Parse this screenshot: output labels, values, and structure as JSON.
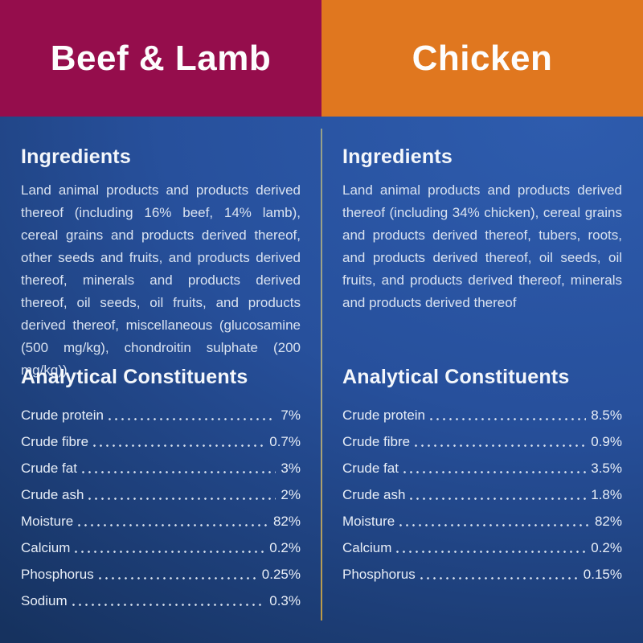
{
  "columns": [
    {
      "id": "beef-lamb",
      "header": {
        "label": "Beef & Lamb",
        "color": "#950D4C"
      },
      "ingredients": {
        "title": "Ingredients",
        "text": "Land animal products and products derived thereof (including 16% beef, 14% lamb), cereal grains and products derived thereof, other seeds and fruits, and products derived thereof, minerals and products derived thereof, oil seeds, oil fruits, and products derived thereof, miscellaneous (glucosamine (500 mg/kg), chondroitin sulphate (200 mg/kg))"
      },
      "analytical": {
        "title": "Analytical Constituents",
        "rows": [
          {
            "label": "Crude protein",
            "value": "7%"
          },
          {
            "label": "Crude fibre",
            "value": "0.7%"
          },
          {
            "label": "Crude fat",
            "value": "3%"
          },
          {
            "label": "Crude ash",
            "value": "2%"
          },
          {
            "label": "Moisture",
            "value": "82%"
          },
          {
            "label": "Calcium",
            "value": "0.2%"
          },
          {
            "label": "Phosphorus",
            "value": "0.25%"
          },
          {
            "label": "Sodium",
            "value": "0.3%"
          }
        ]
      }
    },
    {
      "id": "chicken",
      "header": {
        "label": "Chicken",
        "color": "#E0771F"
      },
      "ingredients": {
        "title": "Ingredients",
        "text": "Land animal products and products derived thereof (including 34% chicken), cereal grains and products derived thereof, tubers, roots, and products derived thereof, oil seeds, oil fruits, and products derived thereof, minerals and products derived thereof"
      },
      "analytical": {
        "title": "Analytical Constituents",
        "rows": [
          {
            "label": "Crude protein",
            "value": "8.5%"
          },
          {
            "label": "Crude fibre",
            "value": "0.9%"
          },
          {
            "label": "Crude fat",
            "value": "3.5%"
          },
          {
            "label": "Crude ash",
            "value": "1.8%"
          },
          {
            "label": "Moisture",
            "value": "82%"
          },
          {
            "label": "Calcium",
            "value": "0.2%"
          },
          {
            "label": "Phosphorus",
            "value": "0.15%"
          }
        ]
      }
    }
  ],
  "colors": {
    "header_left": "#950D4C",
    "header_right": "#E0771F",
    "background_light": "#2E5CAE",
    "background_dark": "#16325F",
    "divider_top": "#96A189",
    "divider_bottom": "#BD9A45",
    "text": "#F2F6FB"
  }
}
